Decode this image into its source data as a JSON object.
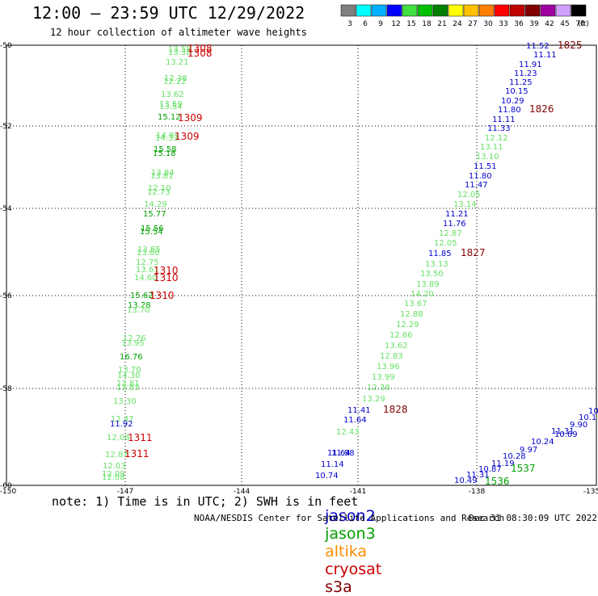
{
  "header": {
    "title": "12:00 – 23:59 UTC 12/29/2022",
    "subtitle": "12 hour collection of altimeter wave heights"
  },
  "legend": {
    "labels": [
      "3",
      "6",
      "9",
      "12",
      "15",
      "18",
      "21",
      "24",
      "27",
      "30",
      "33",
      "36",
      "39",
      "42",
      "45",
      "70"
    ],
    "unit": "(ft)",
    "colors": [
      "#808080",
      "#00ffff",
      "#00b0ff",
      "#0000ff",
      "#40e040",
      "#00c000",
      "#008000",
      "#ffff00",
      "#ffc000",
      "#ff8000",
      "#ff0000",
      "#c00000",
      "#800000",
      "#a000a0",
      "#d0a0ff",
      "#000000"
    ]
  },
  "map": {
    "lat_ticks": [
      "-50",
      "-52",
      "-54",
      "-56",
      "-58",
      "-60"
    ],
    "lon_ticks": [
      "-150",
      "-147",
      "-144",
      "-141",
      "-138",
      "-135"
    ],
    "colors": {
      "jason2": "#0000cc",
      "jason3": "#00a000",
      "altika": "#ff8c00",
      "cryosat": "#cc0000",
      "s3a": "#800000",
      "light_green": "#66e066"
    }
  },
  "tracks": {
    "west_values": [
      {
        "t": "13.58",
        "c": "light_green"
      },
      {
        "t": "13.38",
        "c": "light_green"
      },
      {
        "t": "13.21",
        "c": "light_green"
      },
      {
        "t": "12.38",
        "c": "light_green"
      },
      {
        "t": "12.22",
        "c": "light_green"
      },
      {
        "t": "13.62",
        "c": "light_green"
      },
      {
        "t": "13.59",
        "c": "light_green"
      },
      {
        "t": "13.54",
        "c": "light_green"
      },
      {
        "t": "15.12",
        "c": "jason3"
      },
      {
        "t": "14.83",
        "c": "light_green"
      },
      {
        "t": "14.33",
        "c": "light_green"
      },
      {
        "t": "15.58",
        "c": "jason3"
      },
      {
        "t": "15.18",
        "c": "jason3"
      },
      {
        "t": "13.84",
        "c": "light_green"
      },
      {
        "t": "13.81",
        "c": "light_green"
      },
      {
        "t": "12.10",
        "c": "light_green"
      },
      {
        "t": "12.73",
        "c": "light_green"
      },
      {
        "t": "14.29",
        "c": "light_green"
      },
      {
        "t": "15.77",
        "c": "jason3"
      },
      {
        "t": "15.56",
        "c": "jason3"
      },
      {
        "t": "15.54",
        "c": "jason3"
      },
      {
        "t": "13.85",
        "c": "light_green"
      },
      {
        "t": "13.60",
        "c": "light_green"
      },
      {
        "t": "12.75",
        "c": "light_green"
      },
      {
        "t": "13.61",
        "c": "light_green"
      },
      {
        "t": "14.60",
        "c": "light_green"
      },
      {
        "t": "15.62",
        "c": "jason3"
      },
      {
        "t": "13.28",
        "c": "jason3"
      },
      {
        "t": "13.70",
        "c": "light_green"
      },
      {
        "t": "12.76",
        "c": "light_green"
      },
      {
        "t": "13.95",
        "c": "light_green"
      },
      {
        "t": "16.76",
        "c": "jason3"
      },
      {
        "t": "13.70",
        "c": "light_green"
      },
      {
        "t": "14.30",
        "c": "light_green"
      },
      {
        "t": "13.81",
        "c": "light_green"
      },
      {
        "t": "13.83",
        "c": "light_green"
      },
      {
        "t": "13.30",
        "c": "light_green"
      },
      {
        "t": "12.47",
        "c": "light_green"
      },
      {
        "t": "11.92",
        "c": "jason2"
      },
      {
        "t": "12.08",
        "c": "light_green"
      },
      {
        "t": "12.87",
        "c": "light_green"
      },
      {
        "t": "12.03",
        "c": "light_green"
      },
      {
        "t": "12.09",
        "c": "light_green"
      },
      {
        "t": "12.08",
        "c": "light_green"
      }
    ],
    "west_times": [
      {
        "t": "1308",
        "c": "cryosat"
      },
      {
        "t": "1308",
        "c": "cryosat"
      },
      {
        "t": "1309",
        "c": "cryosat"
      },
      {
        "t": "1309",
        "c": "cryosat"
      },
      {
        "t": "1310",
        "c": "cryosat"
      },
      {
        "t": "1310",
        "c": "cryosat"
      },
      {
        "t": "1310",
        "c": "cryosat"
      },
      {
        "t": "1311",
        "c": "cryosat"
      },
      {
        "t": "1311",
        "c": "cryosat"
      }
    ],
    "east_values": [
      {
        "t": "11.52",
        "c": "jason2"
      },
      {
        "t": "11.11",
        "c": "jason2"
      },
      {
        "t": "11.91",
        "c": "jason2"
      },
      {
        "t": "11.23",
        "c": "jason2"
      },
      {
        "t": "11.25",
        "c": "jason2"
      },
      {
        "t": "10.15",
        "c": "jason2"
      },
      {
        "t": "10.29",
        "c": "jason2"
      },
      {
        "t": "11.80",
        "c": "jason2"
      },
      {
        "t": "11.11",
        "c": "jason2"
      },
      {
        "t": "11.33",
        "c": "jason2"
      },
      {
        "t": "12.12",
        "c": "light_green"
      },
      {
        "t": "13.11",
        "c": "light_green"
      },
      {
        "t": "13.10",
        "c": "light_green"
      },
      {
        "t": "11.51",
        "c": "jason2"
      },
      {
        "t": "11.80",
        "c": "jason2"
      },
      {
        "t": "11.47",
        "c": "jason2"
      },
      {
        "t": "12.05",
        "c": "light_green"
      },
      {
        "t": "13.14",
        "c": "light_green"
      },
      {
        "t": "11.21",
        "c": "jason2"
      },
      {
        "t": "11.76",
        "c": "jason2"
      },
      {
        "t": "12.87",
        "c": "light_green"
      },
      {
        "t": "12.05",
        "c": "light_green"
      },
      {
        "t": "11.85",
        "c": "jason2"
      },
      {
        "t": "13.13",
        "c": "light_green"
      },
      {
        "t": "13.50",
        "c": "light_green"
      },
      {
        "t": "13.89",
        "c": "light_green"
      },
      {
        "t": "14.20",
        "c": "light_green"
      },
      {
        "t": "13.67",
        "c": "light_green"
      },
      {
        "t": "12.88",
        "c": "light_green"
      },
      {
        "t": "12.29",
        "c": "light_green"
      },
      {
        "t": "12.66",
        "c": "light_green"
      },
      {
        "t": "13.62",
        "c": "light_green"
      },
      {
        "t": "12.83",
        "c": "light_green"
      },
      {
        "t": "13.96",
        "c": "light_green"
      },
      {
        "t": "13.99",
        "c": "light_green"
      },
      {
        "t": "12.38",
        "c": "light_green"
      },
      {
        "t": "13.29",
        "c": "light_green"
      },
      {
        "t": "11.41",
        "c": "jason2"
      },
      {
        "t": "11.64",
        "c": "jason2"
      },
      {
        "t": "12.43",
        "c": "light_green"
      },
      {
        "t": "11.98",
        "c": "jason2"
      },
      {
        "t": "11.64",
        "c": "jason2"
      },
      {
        "t": "11.14",
        "c": "jason2"
      },
      {
        "t": "10.74",
        "c": "jason2"
      }
    ],
    "east_times": [
      {
        "t": "1825",
        "c": "s3a"
      },
      {
        "t": "1826",
        "c": "s3a"
      },
      {
        "t": "1827",
        "c": "s3a"
      },
      {
        "t": "1828",
        "c": "s3a"
      }
    ],
    "se_values": [
      {
        "t": "10",
        "c": "jason2"
      },
      {
        "t": "10.1",
        "c": "jason2"
      },
      {
        "t": "9.90",
        "c": "jason2"
      },
      {
        "t": "10.69",
        "c": "jason2"
      },
      {
        "t": "11.31",
        "c": "jason2"
      },
      {
        "t": "10.24",
        "c": "jason2"
      },
      {
        "t": "9.97",
        "c": "jason2"
      },
      {
        "t": "10.28",
        "c": "jason2"
      },
      {
        "t": "11.19",
        "c": "jason2"
      },
      {
        "t": "10.87",
        "c": "jason2"
      },
      {
        "t": "11.31",
        "c": "jason2"
      },
      {
        "t": "10.49",
        "c": "jason2"
      }
    ],
    "se_times": [
      {
        "t": "1537",
        "c": "jason3"
      },
      {
        "t": "1536",
        "c": "jason3"
      }
    ]
  },
  "footer": {
    "note": "note: 1) Time is in UTC; 2) SWH is in feet",
    "satellites": [
      {
        "name": "jason2",
        "color": "#0000cc"
      },
      {
        "name": "jason3",
        "color": "#00a000"
      },
      {
        "name": "altika",
        "color": "#ff8c00"
      },
      {
        "name": "cryosat",
        "color": "#cc0000"
      },
      {
        "name": "s3a",
        "color": "#800000"
      }
    ],
    "credit": "NOAA/NESDIS Center for Satellite Applications and Research",
    "timestamp": "Dec 31 08:30:09 UTC 2022"
  }
}
